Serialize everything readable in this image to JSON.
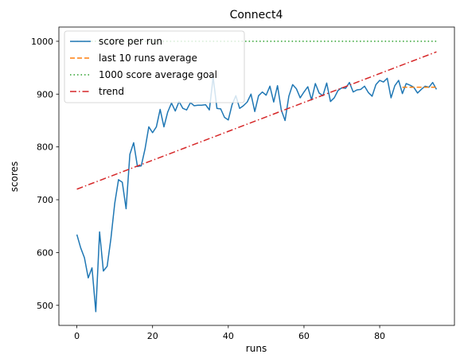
{
  "chart_data": {
    "type": "line",
    "title": "Connect4",
    "xlabel": "runs",
    "ylabel": "scores",
    "xlim": [
      -4.75,
      99.75
    ],
    "ylim": [
      462,
      1027
    ],
    "xticks": [
      0,
      20,
      40,
      60,
      80
    ],
    "yticks": [
      500,
      600,
      700,
      800,
      900,
      1000
    ],
    "grid": false,
    "legend_position": "top-left",
    "series": [
      {
        "name": "score per run",
        "color": "#1f77b4",
        "style": "solid",
        "x": [
          0,
          1,
          2,
          3,
          4,
          5,
          6,
          7,
          8,
          9,
          10,
          11,
          12,
          13,
          14,
          15,
          16,
          17,
          18,
          19,
          20,
          21,
          22,
          23,
          24,
          25,
          26,
          27,
          28,
          29,
          30,
          31,
          32,
          33,
          34,
          35,
          36,
          37,
          38,
          39,
          40,
          41,
          42,
          43,
          44,
          45,
          46,
          47,
          48,
          49,
          50,
          51,
          52,
          53,
          54,
          55,
          56,
          57,
          58,
          59,
          60,
          61,
          62,
          63,
          64,
          65,
          66,
          67,
          68,
          69,
          70,
          71,
          72,
          73,
          74,
          75,
          76,
          77,
          78,
          79,
          80,
          81,
          82,
          83,
          84,
          85,
          86,
          87,
          88,
          89,
          90,
          91,
          92,
          93,
          94,
          95
        ],
        "y": [
          634,
          609,
          590,
          552,
          571,
          488,
          639,
          565,
          574,
          627,
          693,
          738,
          733,
          683,
          786,
          808,
          763,
          764,
          796,
          838,
          827,
          838,
          871,
          838,
          866,
          883,
          868,
          886,
          873,
          870,
          884,
          878,
          879,
          879,
          880,
          870,
          932,
          873,
          872,
          856,
          851,
          880,
          897,
          873,
          878,
          885,
          900,
          867,
          897,
          904,
          898,
          915,
          885,
          916,
          870,
          850,
          896,
          918,
          910,
          893,
          904,
          914,
          889,
          920,
          902,
          897,
          921,
          886,
          893,
          907,
          912,
          911,
          922,
          904,
          908,
          909,
          915,
          903,
          896,
          918,
          926,
          923,
          930,
          893,
          916,
          926,
          901,
          920,
          917,
          913,
          902,
          909,
          915,
          913,
          922,
          909
        ]
      },
      {
        "name": "last 10 runs average",
        "color": "#ff7f0e",
        "style": "dashed",
        "x": [
          86,
          95
        ],
        "y": [
          913,
          913
        ]
      },
      {
        "name": "1000 score average goal",
        "color": "#2ca02c",
        "style": "dotted",
        "x": [
          0,
          95
        ],
        "y": [
          1000,
          1000
        ]
      },
      {
        "name": "trend",
        "color": "#d62728",
        "style": "dashdot",
        "x": [
          0,
          95
        ],
        "y": [
          720,
          980
        ]
      }
    ]
  }
}
